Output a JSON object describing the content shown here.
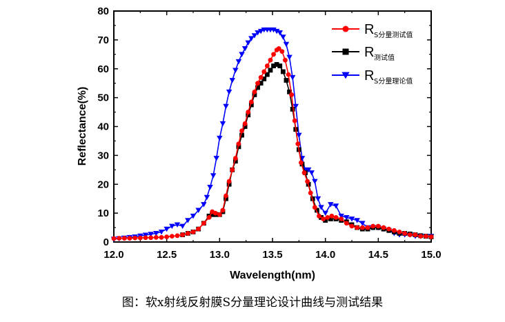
{
  "caption": "图：软x射线反射膜S分量理论设计曲线与测试结果",
  "chart_data": {
    "type": "line",
    "xlabel": "Wavelength(nm)",
    "ylabel": "Reflectance(%)",
    "xlim": [
      12.0,
      15.0
    ],
    "ylim": [
      0,
      80
    ],
    "xticks": [
      "12.0",
      "12.5",
      "13.0",
      "13.5",
      "14.0",
      "14.5",
      "15.0"
    ],
    "yticks": [
      "0",
      "10",
      "20",
      "30",
      "40",
      "50",
      "60",
      "70",
      "80"
    ],
    "legend_position": "top-right",
    "series": [
      {
        "name": "R",
        "name_sub": "S分量测试值",
        "color": "#ff0000",
        "marker": "circle",
        "points": [
          [
            12.0,
            1.2
          ],
          [
            12.05,
            1.3
          ],
          [
            12.1,
            1.3
          ],
          [
            12.15,
            1.3
          ],
          [
            12.2,
            1.4
          ],
          [
            12.25,
            1.4
          ],
          [
            12.3,
            1.5
          ],
          [
            12.35,
            1.5
          ],
          [
            12.4,
            1.6
          ],
          [
            12.45,
            1.6
          ],
          [
            12.5,
            1.8
          ],
          [
            12.55,
            2.0
          ],
          [
            12.6,
            2.2
          ],
          [
            12.65,
            2.5
          ],
          [
            12.7,
            3.0
          ],
          [
            12.75,
            3.5
          ],
          [
            12.8,
            4.5
          ],
          [
            12.85,
            6.5
          ],
          [
            12.9,
            8.5
          ],
          [
            12.93,
            10.5
          ],
          [
            12.96,
            10.0
          ],
          [
            13.0,
            9.5
          ],
          [
            13.03,
            11
          ],
          [
            13.06,
            16
          ],
          [
            13.09,
            21
          ],
          [
            13.12,
            25
          ],
          [
            13.15,
            29
          ],
          [
            13.18,
            34
          ],
          [
            13.21,
            38.5
          ],
          [
            13.24,
            41
          ],
          [
            13.27,
            45
          ],
          [
            13.3,
            48.5
          ],
          [
            13.33,
            52
          ],
          [
            13.36,
            55
          ],
          [
            13.39,
            57
          ],
          [
            13.42,
            59
          ],
          [
            13.45,
            61
          ],
          [
            13.48,
            63
          ],
          [
            13.51,
            65
          ],
          [
            13.54,
            66.5
          ],
          [
            13.56,
            67
          ],
          [
            13.59,
            66
          ],
          [
            13.62,
            63
          ],
          [
            13.65,
            58
          ],
          [
            13.68,
            51
          ],
          [
            13.71,
            42
          ],
          [
            13.74,
            34
          ],
          [
            13.77,
            27.5
          ],
          [
            13.8,
            24
          ],
          [
            13.83,
            21
          ],
          [
            13.86,
            17
          ],
          [
            13.9,
            12
          ],
          [
            13.94,
            9
          ],
          [
            13.98,
            8
          ],
          [
            14.02,
            8.5
          ],
          [
            14.06,
            9
          ],
          [
            14.1,
            8.5
          ],
          [
            14.15,
            8
          ],
          [
            14.2,
            6.5
          ],
          [
            14.25,
            5.5
          ],
          [
            14.3,
            5
          ],
          [
            14.35,
            5
          ],
          [
            14.4,
            5
          ],
          [
            14.45,
            5.5
          ],
          [
            14.5,
            5.5
          ],
          [
            14.55,
            5
          ],
          [
            14.6,
            4.5
          ],
          [
            14.65,
            4
          ],
          [
            14.7,
            3.5
          ],
          [
            14.75,
            3
          ],
          [
            14.8,
            2.5
          ],
          [
            14.85,
            2.5
          ],
          [
            14.9,
            2
          ],
          [
            14.95,
            2
          ],
          [
            15.0,
            1.8
          ]
        ]
      },
      {
        "name": "R",
        "name_sub": "测试值",
        "color": "#000000",
        "marker": "square",
        "points": [
          [
            12.65,
            2.5
          ],
          [
            12.7,
            3
          ],
          [
            12.75,
            3.5
          ],
          [
            12.8,
            4.5
          ],
          [
            12.85,
            6.5
          ],
          [
            12.9,
            9
          ],
          [
            12.93,
            9.5
          ],
          [
            12.96,
            9.5
          ],
          [
            13.0,
            9.5
          ],
          [
            13.03,
            10.5
          ],
          [
            13.06,
            15
          ],
          [
            13.09,
            20
          ],
          [
            13.12,
            25
          ],
          [
            13.15,
            28
          ],
          [
            13.18,
            33
          ],
          [
            13.21,
            37
          ],
          [
            13.24,
            40
          ],
          [
            13.27,
            44
          ],
          [
            13.3,
            47.5
          ],
          [
            13.33,
            51
          ],
          [
            13.36,
            53.5
          ],
          [
            13.39,
            55
          ],
          [
            13.42,
            56.5
          ],
          [
            13.45,
            58
          ],
          [
            13.48,
            59.5
          ],
          [
            13.51,
            61
          ],
          [
            13.54,
            61.5
          ],
          [
            13.57,
            61
          ],
          [
            13.6,
            59
          ],
          [
            13.63,
            56
          ],
          [
            13.66,
            52
          ],
          [
            13.69,
            46
          ],
          [
            13.72,
            39
          ],
          [
            13.75,
            32
          ],
          [
            13.78,
            27
          ],
          [
            13.81,
            24
          ],
          [
            13.84,
            20
          ],
          [
            13.88,
            15
          ],
          [
            13.92,
            11
          ],
          [
            13.96,
            8.5
          ],
          [
            14.0,
            7.5
          ],
          [
            14.05,
            8
          ],
          [
            14.1,
            8
          ],
          [
            14.15,
            7.5
          ],
          [
            14.2,
            7
          ],
          [
            14.25,
            6
          ],
          [
            14.3,
            5
          ],
          [
            14.35,
            4.5
          ],
          [
            14.4,
            4.5
          ],
          [
            14.45,
            5
          ],
          [
            14.5,
            5
          ],
          [
            14.55,
            4.5
          ],
          [
            14.6,
            4
          ],
          [
            14.65,
            3.5
          ],
          [
            14.7,
            3
          ],
          [
            14.75,
            3
          ],
          [
            14.8,
            2.8
          ],
          [
            14.85,
            2.5
          ],
          [
            14.9,
            2.2
          ],
          [
            14.95,
            2
          ],
          [
            15.0,
            1.8
          ]
        ]
      },
      {
        "name": "R",
        "name_sub": "S分量理论值",
        "color": "#0000ff",
        "marker": "triangle-down",
        "points": [
          [
            12.0,
            1.0
          ],
          [
            12.05,
            1.2
          ],
          [
            12.1,
            1.4
          ],
          [
            12.15,
            1.6
          ],
          [
            12.2,
            1.8
          ],
          [
            12.25,
            2.1
          ],
          [
            12.3,
            2.4
          ],
          [
            12.35,
            2.7
          ],
          [
            12.4,
            3.0
          ],
          [
            12.45,
            3.5
          ],
          [
            12.5,
            4.5
          ],
          [
            12.55,
            5.5
          ],
          [
            12.6,
            6.0
          ],
          [
            12.65,
            5.5
          ],
          [
            12.7,
            7.5
          ],
          [
            12.75,
            9
          ],
          [
            12.8,
            11
          ],
          [
            12.85,
            13
          ],
          [
            12.88,
            15.5
          ],
          [
            12.91,
            19
          ],
          [
            12.94,
            23
          ],
          [
            12.97,
            29
          ],
          [
            13.0,
            36
          ],
          [
            13.03,
            41
          ],
          [
            13.06,
            47
          ],
          [
            13.09,
            52
          ],
          [
            13.12,
            56
          ],
          [
            13.15,
            59.5
          ],
          [
            13.18,
            62.5
          ],
          [
            13.21,
            65
          ],
          [
            13.24,
            67
          ],
          [
            13.27,
            69
          ],
          [
            13.3,
            70.5
          ],
          [
            13.33,
            71.5
          ],
          [
            13.36,
            72.5
          ],
          [
            13.39,
            73
          ],
          [
            13.42,
            73.5
          ],
          [
            13.45,
            73.5
          ],
          [
            13.48,
            73.5
          ],
          [
            13.51,
            73.5
          ],
          [
            13.54,
            73
          ],
          [
            13.57,
            72.5
          ],
          [
            13.6,
            71
          ],
          [
            13.63,
            68.5
          ],
          [
            13.66,
            64
          ],
          [
            13.69,
            57
          ],
          [
            13.72,
            47
          ],
          [
            13.75,
            37
          ],
          [
            13.78,
            29
          ],
          [
            13.81,
            25
          ],
          [
            13.84,
            25
          ],
          [
            13.87,
            24
          ],
          [
            13.9,
            21
          ],
          [
            13.93,
            15
          ],
          [
            13.96,
            12
          ],
          [
            14.0,
            10
          ],
          [
            14.05,
            13
          ],
          [
            14.1,
            12.5
          ],
          [
            14.15,
            9
          ],
          [
            14.2,
            8.5
          ],
          [
            14.25,
            8
          ],
          [
            14.3,
            7.5
          ],
          [
            14.35,
            6.5
          ],
          [
            14.4,
            5
          ],
          [
            14.45,
            5
          ],
          [
            14.5,
            5
          ],
          [
            14.55,
            4.5
          ],
          [
            14.6,
            4
          ],
          [
            14.65,
            3
          ],
          [
            14.7,
            2.5
          ],
          [
            14.75,
            2.5
          ],
          [
            14.8,
            2.5
          ],
          [
            14.85,
            2
          ],
          [
            14.9,
            2
          ],
          [
            14.95,
            2
          ],
          [
            15.0,
            2
          ]
        ]
      }
    ]
  }
}
